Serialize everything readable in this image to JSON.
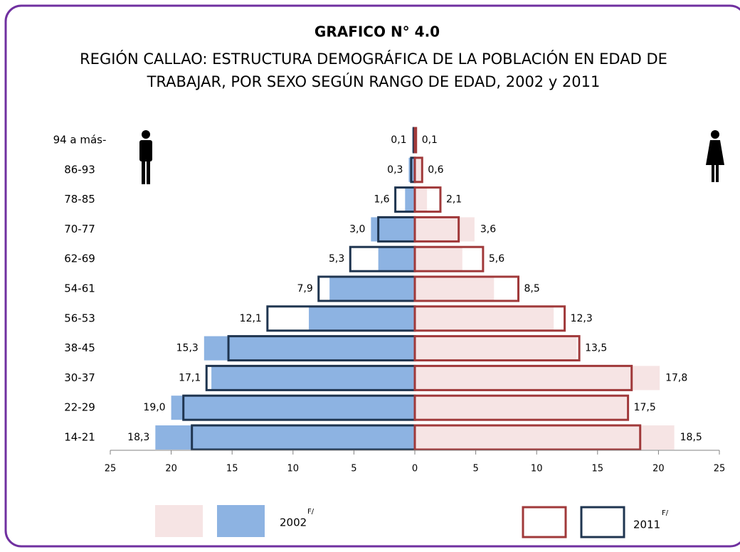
{
  "chart_data": {
    "type": "pyramid",
    "title": "GRAFICO N° 4.0",
    "subtitle_lines": [
      "REGIÓN CALLAO:  ESTRUCTURA DEMOGRÁFICA DE LA POBLACIÓN EN EDAD DE",
      "TRABAJAR, POR SEXO SEGÚN RANGO DE EDAD, 2002 y 2011"
    ],
    "categories": [
      "94 a más-",
      "86-93",
      "78-85",
      "70-77",
      "62-69",
      "54-61",
      "56-53",
      "38-45",
      "30-37",
      "22-29",
      "14-21"
    ],
    "series": [
      {
        "name": "2002",
        "style": "fill",
        "male_color": "#8db3e2",
        "female_color": "#f6e4e4",
        "male_values": [
          0.2,
          0.5,
          0.8,
          3.6,
          3.0,
          7.0,
          8.7,
          17.3,
          16.7,
          20.0,
          21.3
        ],
        "female_values": [
          0.1,
          0.5,
          1.0,
          4.9,
          3.9,
          6.5,
          11.4,
          13.3,
          20.1,
          17.4,
          21.3
        ]
      },
      {
        "name": "2011",
        "style": "outline",
        "male_color": "#1f3550",
        "female_color": "#a0393a",
        "male_values": [
          0.1,
          0.3,
          1.6,
          3.0,
          5.3,
          7.9,
          12.1,
          15.3,
          17.1,
          19.0,
          18.3
        ],
        "male_value_labels": [
          "0,1",
          "0,3",
          "1,6",
          "3,0",
          "5,3",
          "7,9",
          "12,1",
          "15,3",
          "17,1",
          "19,0",
          "18,3"
        ],
        "female_values": [
          0.1,
          0.6,
          2.1,
          3.6,
          5.6,
          8.5,
          12.3,
          13.5,
          17.8,
          17.5,
          18.5
        ],
        "female_value_labels": [
          "0,1",
          "0,6",
          "2,1",
          "3,6",
          "5,6",
          "8,5",
          "12,3",
          "13,5",
          "17,8",
          "17,5",
          "18,5"
        ]
      }
    ],
    "legend_note": "F/",
    "xlim": [
      -25,
      25
    ],
    "xticks": [
      {
        "value": -25,
        "label": "25"
      },
      {
        "value": -20,
        "label": "20"
      },
      {
        "value": -15,
        "label": "15"
      },
      {
        "value": -10,
        "label": "10"
      },
      {
        "value": -5,
        "label": "5"
      },
      0,
      5,
      10,
      15,
      20,
      25
    ]
  }
}
